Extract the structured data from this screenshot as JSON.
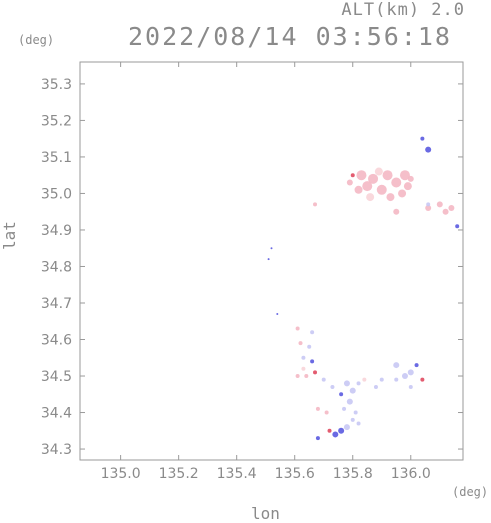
{
  "header": {
    "altitude_label": "ALT(km) 2.0",
    "timestamp": "2022/08/14 03:56:18"
  },
  "colors": {
    "axis": "#9a9a9a",
    "text": "#8a8a8a",
    "pink": "#f4b8c4",
    "light_pink": "#f8d4d8",
    "red": "#e04a60",
    "blue": "#5a5ae0",
    "light_blue": "#c8c8f4"
  },
  "chart_data": {
    "type": "scatter",
    "title": "",
    "xlabel": "lon",
    "ylabel": "lat",
    "x_unit": "(deg)",
    "y_unit": "(deg)",
    "xlim": [
      134.86,
      136.18
    ],
    "ylim": [
      34.27,
      35.36
    ],
    "x_ticks": [
      "135.0",
      "135.2",
      "135.4",
      "135.6",
      "135.8",
      "136.0"
    ],
    "x_tick_values": [
      135.0,
      135.2,
      135.4,
      135.6,
      135.8,
      136.0
    ],
    "y_ticks": [
      "34.3",
      "34.4",
      "34.5",
      "34.6",
      "34.7",
      "34.8",
      "34.9",
      "35.0",
      "35.1",
      "35.2",
      "35.3"
    ],
    "y_tick_values": [
      34.3,
      34.4,
      34.5,
      34.6,
      34.7,
      34.8,
      34.9,
      35.0,
      35.1,
      35.2,
      35.3
    ],
    "points": [
      {
        "x": 135.87,
        "y": 35.04,
        "c": "pink",
        "s": 5
      },
      {
        "x": 135.85,
        "y": 35.02,
        "c": "pink",
        "s": 5
      },
      {
        "x": 135.9,
        "y": 35.01,
        "c": "pink",
        "s": 5
      },
      {
        "x": 135.95,
        "y": 35.03,
        "c": "pink",
        "s": 5
      },
      {
        "x": 135.92,
        "y": 35.05,
        "c": "pink",
        "s": 5
      },
      {
        "x": 135.83,
        "y": 35.05,
        "c": "pink",
        "s": 5
      },
      {
        "x": 135.98,
        "y": 35.05,
        "c": "pink",
        "s": 5
      },
      {
        "x": 135.97,
        "y": 35.0,
        "c": "pink",
        "s": 4
      },
      {
        "x": 135.89,
        "y": 35.06,
        "c": "light_pink",
        "s": 4
      },
      {
        "x": 135.82,
        "y": 35.01,
        "c": "pink",
        "s": 4
      },
      {
        "x": 135.93,
        "y": 34.99,
        "c": "pink",
        "s": 4
      },
      {
        "x": 135.86,
        "y": 34.99,
        "c": "light_pink",
        "s": 4
      },
      {
        "x": 135.99,
        "y": 35.02,
        "c": "pink",
        "s": 4
      },
      {
        "x": 136.0,
        "y": 35.04,
        "c": "pink",
        "s": 3
      },
      {
        "x": 135.79,
        "y": 35.03,
        "c": "pink",
        "s": 3
      },
      {
        "x": 135.8,
        "y": 35.05,
        "c": "red",
        "s": 2
      },
      {
        "x": 135.95,
        "y": 34.95,
        "c": "pink",
        "s": 3
      },
      {
        "x": 136.06,
        "y": 35.12,
        "c": "blue",
        "s": 3
      },
      {
        "x": 136.04,
        "y": 35.15,
        "c": "blue",
        "s": 2
      },
      {
        "x": 136.06,
        "y": 34.96,
        "c": "pink",
        "s": 3
      },
      {
        "x": 136.1,
        "y": 34.97,
        "c": "pink",
        "s": 3
      },
      {
        "x": 136.14,
        "y": 34.96,
        "c": "pink",
        "s": 3
      },
      {
        "x": 136.12,
        "y": 34.95,
        "c": "pink",
        "s": 3
      },
      {
        "x": 136.06,
        "y": 34.97,
        "c": "light_blue",
        "s": 2
      },
      {
        "x": 136.16,
        "y": 34.91,
        "c": "blue",
        "s": 2
      },
      {
        "x": 135.67,
        "y": 34.97,
        "c": "pink",
        "s": 2
      },
      {
        "x": 135.52,
        "y": 34.85,
        "c": "blue",
        "s": 1
      },
      {
        "x": 135.51,
        "y": 34.82,
        "c": "blue",
        "s": 1
      },
      {
        "x": 135.54,
        "y": 34.67,
        "c": "blue",
        "s": 1
      },
      {
        "x": 135.61,
        "y": 34.63,
        "c": "pink",
        "s": 2
      },
      {
        "x": 135.66,
        "y": 34.62,
        "c": "light_blue",
        "s": 2
      },
      {
        "x": 135.65,
        "y": 34.58,
        "c": "light_blue",
        "s": 2
      },
      {
        "x": 135.62,
        "y": 34.59,
        "c": "pink",
        "s": 2
      },
      {
        "x": 135.63,
        "y": 34.55,
        "c": "light_blue",
        "s": 2
      },
      {
        "x": 135.66,
        "y": 34.54,
        "c": "blue",
        "s": 2
      },
      {
        "x": 135.63,
        "y": 34.52,
        "c": "light_pink",
        "s": 2
      },
      {
        "x": 135.61,
        "y": 34.5,
        "c": "pink",
        "s": 2
      },
      {
        "x": 135.64,
        "y": 34.5,
        "c": "pink",
        "s": 2
      },
      {
        "x": 135.67,
        "y": 34.51,
        "c": "red",
        "s": 2
      },
      {
        "x": 135.7,
        "y": 34.49,
        "c": "light_blue",
        "s": 2
      },
      {
        "x": 135.73,
        "y": 34.47,
        "c": "light_blue",
        "s": 2
      },
      {
        "x": 135.78,
        "y": 34.48,
        "c": "light_blue",
        "s": 3
      },
      {
        "x": 135.8,
        "y": 34.46,
        "c": "light_blue",
        "s": 3
      },
      {
        "x": 135.82,
        "y": 34.48,
        "c": "light_blue",
        "s": 2
      },
      {
        "x": 135.84,
        "y": 34.49,
        "c": "light_pink",
        "s": 2
      },
      {
        "x": 135.76,
        "y": 34.45,
        "c": "blue",
        "s": 2
      },
      {
        "x": 135.79,
        "y": 34.43,
        "c": "light_blue",
        "s": 3
      },
      {
        "x": 135.77,
        "y": 34.41,
        "c": "light_blue",
        "s": 2
      },
      {
        "x": 135.81,
        "y": 34.4,
        "c": "light_blue",
        "s": 2
      },
      {
        "x": 135.68,
        "y": 34.41,
        "c": "pink",
        "s": 2
      },
      {
        "x": 135.71,
        "y": 34.4,
        "c": "pink",
        "s": 2
      },
      {
        "x": 135.8,
        "y": 34.38,
        "c": "light_blue",
        "s": 2
      },
      {
        "x": 135.82,
        "y": 34.37,
        "c": "light_blue",
        "s": 2
      },
      {
        "x": 135.78,
        "y": 34.36,
        "c": "light_blue",
        "s": 3
      },
      {
        "x": 135.76,
        "y": 34.35,
        "c": "blue",
        "s": 3
      },
      {
        "x": 135.74,
        "y": 34.34,
        "c": "blue",
        "s": 3
      },
      {
        "x": 135.72,
        "y": 34.35,
        "c": "red",
        "s": 2
      },
      {
        "x": 135.68,
        "y": 34.33,
        "c": "blue",
        "s": 2
      },
      {
        "x": 135.95,
        "y": 34.53,
        "c": "light_blue",
        "s": 3
      },
      {
        "x": 135.98,
        "y": 34.5,
        "c": "light_blue",
        "s": 3
      },
      {
        "x": 136.0,
        "y": 34.51,
        "c": "light_blue",
        "s": 3
      },
      {
        "x": 136.02,
        "y": 34.53,
        "c": "blue",
        "s": 2
      },
      {
        "x": 135.95,
        "y": 34.49,
        "c": "light_blue",
        "s": 2
      },
      {
        "x": 136.04,
        "y": 34.49,
        "c": "red",
        "s": 2
      },
      {
        "x": 135.9,
        "y": 34.49,
        "c": "light_blue",
        "s": 2
      },
      {
        "x": 135.88,
        "y": 34.47,
        "c": "light_blue",
        "s": 2
      },
      {
        "x": 136.0,
        "y": 34.47,
        "c": "light_blue",
        "s": 2
      }
    ]
  }
}
